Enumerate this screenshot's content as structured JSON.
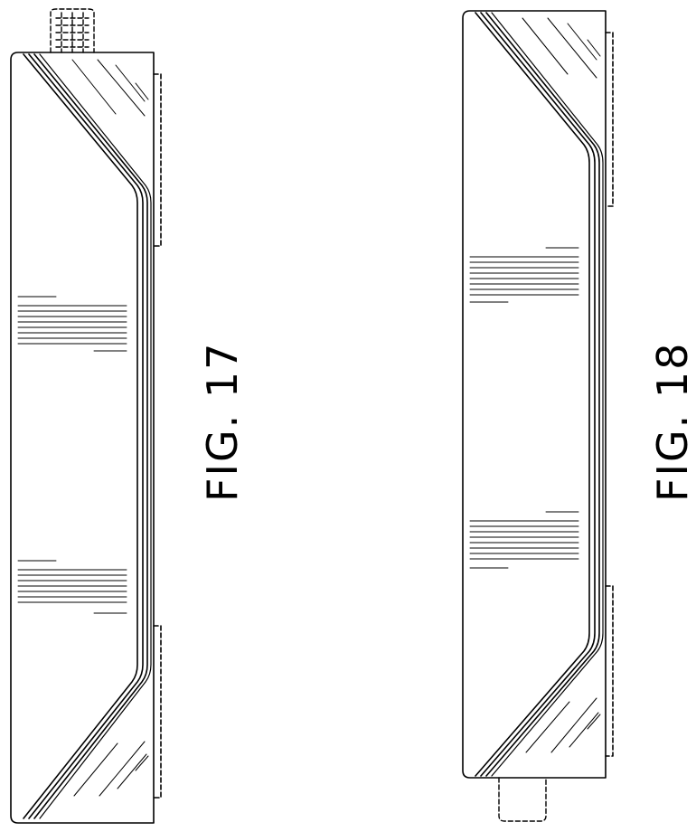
{
  "figures": [
    {
      "id": "fig17",
      "label": "FIG. 17"
    },
    {
      "id": "fig18",
      "label": "FIG. 18"
    }
  ],
  "colors": {
    "line": "#000000",
    "background": "#ffffff"
  }
}
